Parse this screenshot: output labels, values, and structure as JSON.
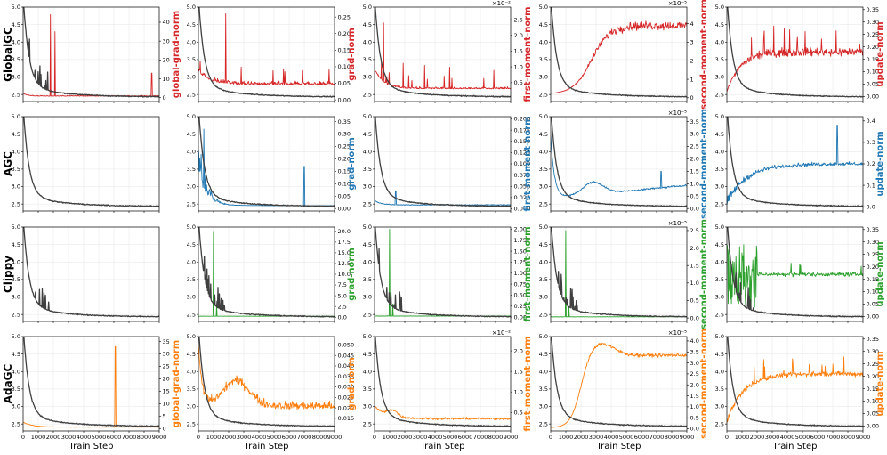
{
  "figure": {
    "x_axis_label": "Train Step",
    "loss_color": "#404040",
    "methods": [
      {
        "name": "GlobalGC",
        "color": "#d62728"
      },
      {
        "name": "AGC",
        "color": "#1f77b4"
      },
      {
        "name": "Clippy",
        "color": "#2ca02c"
      },
      {
        "name": "AdaGC",
        "color": "#ff7f0e"
      }
    ]
  },
  "chart_data": {
    "type": "line",
    "grid": true,
    "x_ticks": [
      0,
      1000,
      2000,
      3000,
      4000,
      5000,
      6000,
      7000,
      8000,
      9000
    ],
    "x_range": [
      0,
      9000
    ],
    "loss": {
      "y_range": [
        2.3,
        5.0
      ],
      "y_ticks": [
        "2.5",
        "3.0",
        "3.5",
        "4.0",
        "4.5",
        "5.0"
      ],
      "shape": "decays from ~5.0 to ~2.45 over 9000 steps"
    },
    "rows": [
      {
        "method": "GlobalGC",
        "panels": [
          {
            "label": "global-grad-norm",
            "exponent": "",
            "y_range": [
              -2,
              48
            ],
            "y_ticks": [
              "0",
              "10",
              "20",
              "30",
              "40"
            ],
            "shape": "near 1, spikes to 44 at ~1800, 35 at ~2100, 13 at ~8500"
          },
          {
            "label": "grad-norm",
            "exponent": "",
            "y_range": [
              -0.005,
              0.28
            ],
            "y_ticks": [
              "0.00",
              "0.05",
              "0.10",
              "0.15",
              "0.20",
              "0.25"
            ],
            "shape": "around 0.05 noisy, spike 0.26 at ~1800"
          },
          {
            "label": "first-moment-norm",
            "exponent": "×10⁻²",
            "y_range": [
              -0.1,
              2.9
            ],
            "y_ticks": [
              "0.5",
              "1.0",
              "1.5",
              "2.0",
              "2.5"
            ],
            "shape": "starts ~0.8, settles ~0.3, spikes to 2.4"
          },
          {
            "label": "second-moment-norm",
            "exponent": "×10⁻⁵",
            "y_range": [
              -0.2,
              4.9
            ],
            "y_ticks": [
              "0",
              "1",
              "2",
              "3",
              "4"
            ],
            "shape": "rises from 0 at ~1200 to plateau ~3.8-4.2 after ~4500"
          },
          {
            "label": "update-norm",
            "exponent": "",
            "y_range": [
              -0.02,
              0.36
            ],
            "y_ticks": [
              "0.00",
              "0.05",
              "0.10",
              "0.15",
              "0.20",
              "0.25",
              "0.30",
              "0.35"
            ],
            "shape": "rises from 0.02 to plateau ~0.18 by ~3000, spikes to 0.33"
          }
        ]
      },
      {
        "method": "AGC",
        "panels": [
          {
            "label": "",
            "exponent": "",
            "y_range": [
              0,
              1
            ],
            "y_ticks": [],
            "shape": "loss only"
          },
          {
            "label": "grad-norm",
            "exponent": "",
            "y_range": [
              -0.01,
              0.37
            ],
            "y_ticks": [
              "0.00",
              "0.05",
              "0.10",
              "0.15",
              "0.20",
              "0.25",
              "0.30",
              "0.35"
            ],
            "shape": "starts ~0.3 noisy, decays to ~0.01, spikes 0.32 and 0.17 at ~7000"
          },
          {
            "label": "first-moment-norm",
            "exponent": "",
            "y_range": [
              -0.005,
              0.205
            ],
            "y_ticks": [
              "0.000",
              "0.025",
              "0.050",
              "0.075",
              "0.100",
              "0.125",
              "0.150",
              "0.175",
              "0.200"
            ],
            "shape": "near 0.01 with small spikes, 0.04 at ~1400"
          },
          {
            "label": "second-moment-norm",
            "exponent": "×10⁻⁵",
            "y_range": [
              -0.1,
              3.7
            ],
            "y_ticks": [
              "0.0",
              "0.5",
              "1.0",
              "1.5",
              "2.0",
              "2.5",
              "3.0",
              "3.5"
            ],
            "shape": "early spike 3.0, dips, bump 0.9 at ~2800, gradually to 0.9 at 9000"
          },
          {
            "label": "update-norm",
            "exponent": "",
            "y_range": [
              -0.02,
              0.42
            ],
            "y_ticks": [
              "0.0",
              "0.1",
              "0.2",
              "0.3",
              "0.4"
            ],
            "shape": "rises to ~0.2 plateau by ~4000, spike 0.38 at ~7300"
          }
        ]
      },
      {
        "method": "Clippy",
        "panels": [
          {
            "label": "",
            "exponent": "",
            "y_range": [
              0,
              1
            ],
            "y_ticks": [],
            "shape": "loss only, early spikes ~1000"
          },
          {
            "label": "grad-norm",
            "exponent": "",
            "y_range": [
              -1,
              21
            ],
            "y_ticks": [
              "0.0",
              "2.5",
              "5.0",
              "7.5",
              "10.0",
              "12.5",
              "15.0",
              "17.5",
              "20.0"
            ],
            "shape": "near 0.2, spike 20 at ~1000"
          },
          {
            "label": "first-moment-norm",
            "exponent": "",
            "y_range": [
              -0.1,
              2.05
            ],
            "y_ticks": [
              "0.00",
              "0.25",
              "0.50",
              "0.75",
              "1.00",
              "1.25",
              "1.50",
              "1.75",
              "2.00"
            ],
            "shape": "near 0.02, spike 2.0 at ~1000"
          },
          {
            "label": "second-moment-norm",
            "exponent": "×10⁻⁵",
            "y_range": [
              -0.1,
              2.6
            ],
            "y_ticks": [
              "0.0",
              "0.5",
              "1.0",
              "1.5",
              "2.0",
              "2.5"
            ],
            "shape": "near 0, spike 2.5 at ~1000"
          },
          {
            "label": "update-norm",
            "exponent": "",
            "y_range": [
              -0.02,
              0.36
            ],
            "y_ticks": [
              "0.00",
              "0.05",
              "0.10",
              "0.15",
              "0.20",
              "0.25",
              "0.30",
              "0.35"
            ],
            "shape": "very noisy 0.0-0.3 early, settles ~0.17 after ~2000"
          }
        ]
      },
      {
        "method": "AdaGC",
        "panels": [
          {
            "label": "global-grad-norm",
            "exponent": "",
            "y_range": [
              -1,
              37
            ],
            "y_ticks": [
              "0",
              "5",
              "10",
              "15",
              "20",
              "25",
              "30",
              "35"
            ],
            "shape": "near 2 decaying to 0.5, spike 33 at ~6100"
          },
          {
            "label": "grad-norm",
            "exponent": "",
            "y_range": [
              0.009,
              0.054
            ],
            "y_ticks": [
              "0.015",
              "0.020",
              "0.025",
              "0.030",
              "0.035",
              "0.040",
              "0.045",
              "0.050"
            ],
            "shape": "starts 0.05, dips to 0.025, bump to 0.034 at ~2500, then ~0.02 noisy"
          },
          {
            "label": "first-moment-norm",
            "exponent": "×10⁻²",
            "y_range": [
              0.05,
              2.35
            ],
            "y_ticks": [
              "0.5",
              "1.0",
              "1.5",
              "2.0"
            ],
            "shape": "~0.55 early with bump, settles ~0.35"
          },
          {
            "label": "second-moment-norm",
            "exponent": "×10⁻⁵",
            "y_range": [
              -0.1,
              4.2
            ],
            "y_ticks": [
              "0.0",
              "0.5",
              "1.0",
              "1.5",
              "2.0",
              "2.5",
              "3.0",
              "3.5",
              "4.0"
            ],
            "shape": "rises from 0 at ~1000 to peak 3.8 at ~3000, settles ~3.3"
          },
          {
            "label": "update-norm",
            "exponent": "",
            "y_range": [
              -0.02,
              0.36
            ],
            "y_ticks": [
              "0.00",
              "0.05",
              "0.10",
              "0.15",
              "0.20",
              "0.25",
              "0.30",
              "0.35"
            ],
            "shape": "rises to ~0.2 by ~3500, spikes to 0.3"
          }
        ]
      }
    ]
  }
}
